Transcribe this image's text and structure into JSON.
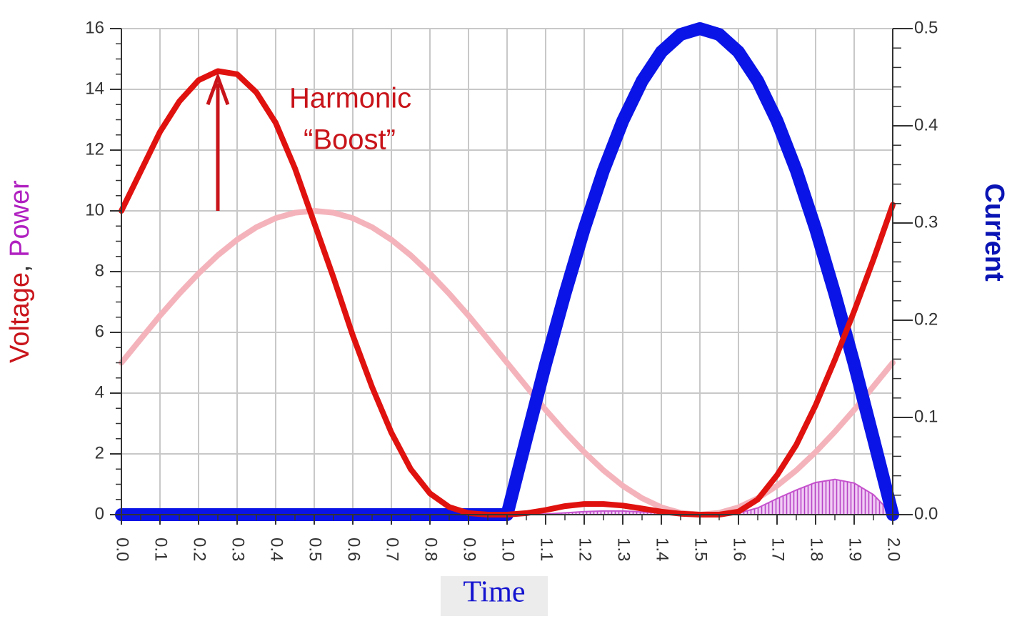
{
  "chart_data": {
    "type": "line",
    "y_label": [
      "Voltage",
      ", ",
      "Power"
    ],
    "y_label_colors": [
      "#c8141a",
      "#333333",
      "#b020c0"
    ],
    "y2_label": "Current",
    "y2_label_color": "#0a14b4",
    "x_label": "Time",
    "x_label_color": "#1414d0",
    "annotation": [
      "Harmonic",
      "“Boost”"
    ],
    "annotation_color": "#c8141a",
    "x": [
      0,
      0.05,
      0.1,
      0.15,
      0.2,
      0.25,
      0.3,
      0.35,
      0.4,
      0.45,
      0.5,
      0.55,
      0.6,
      0.65,
      0.7,
      0.75,
      0.8,
      0.85,
      0.9,
      0.95,
      1,
      1.05,
      1.1,
      1.15,
      1.2,
      1.25,
      1.3,
      1.35,
      1.4,
      1.45,
      1.5,
      1.55,
      1.6,
      1.65,
      1.7,
      1.75,
      1.8,
      1.85,
      1.9,
      1.95,
      2
    ],
    "series": [
      {
        "color": "#f4b3bb",
        "values": [
          5,
          5.78,
          6.55,
          7.27,
          7.94,
          8.54,
          9.05,
          9.46,
          9.76,
          9.94,
          10,
          9.94,
          9.76,
          9.46,
          9.05,
          8.54,
          7.94,
          7.27,
          6.55,
          5.78,
          5,
          4.22,
          3.45,
          2.73,
          2.06,
          1.46,
          0.95,
          0.54,
          0.24,
          0.06,
          0,
          0.06,
          0.24,
          0.54,
          0.95,
          1.46,
          2.06,
          2.73,
          3.45,
          4.22,
          5
        ]
      },
      {
        "type": "area",
        "color": "#c040c8",
        "values": [
          0,
          0,
          0,
          0,
          0,
          0,
          0,
          0,
          0,
          0,
          0,
          0,
          0,
          0,
          0,
          0,
          0,
          0,
          0,
          0,
          0,
          0.004,
          0.02,
          0.06,
          0.1,
          0.12,
          0.12,
          0.09,
          0.05,
          0.01,
          0,
          0,
          0.05,
          0.22,
          0.53,
          0.81,
          1.06,
          1.16,
          1.04,
          0.66,
          0
        ]
      },
      {
        "axis": "y2",
        "color": "#0a14e6",
        "values": [
          0,
          0,
          0,
          0,
          0,
          0,
          0,
          0,
          0,
          0,
          0,
          0,
          0,
          0,
          0,
          0,
          0,
          0,
          0,
          0,
          0,
          0.078,
          0.155,
          0.227,
          0.294,
          0.354,
          0.405,
          0.446,
          0.476,
          0.494,
          0.5,
          0.494,
          0.476,
          0.446,
          0.405,
          0.354,
          0.294,
          0.227,
          0.155,
          0.078,
          0
        ]
      },
      {
        "color": "#e0120f",
        "values": [
          10,
          11.3,
          12.6,
          13.6,
          14.3,
          14.6,
          14.5,
          13.9,
          12.9,
          11.4,
          9.6,
          7.8,
          5.9,
          4.2,
          2.7,
          1.5,
          0.7,
          0.25,
          0.05,
          0,
          0,
          0.05,
          0.15,
          0.28,
          0.35,
          0.35,
          0.3,
          0.2,
          0.1,
          0.03,
          0,
          0,
          0.1,
          0.5,
          1.3,
          2.3,
          3.6,
          5.1,
          6.7,
          8.4,
          10.2
        ]
      }
    ],
    "xlim": [
      0,
      2
    ],
    "ylim": [
      0,
      16
    ],
    "y2lim": [
      0,
      0.5
    ],
    "xticks": [
      {
        "value": 0,
        "label": "0.0"
      },
      0.1,
      0.2,
      0.3,
      0.4,
      0.5,
      0.6,
      0.7,
      0.8,
      0.9,
      {
        "value": 1,
        "label": "1.0"
      },
      1.1,
      1.2,
      1.3,
      1.4,
      1.5,
      1.6,
      1.7,
      1.8,
      1.9,
      {
        "value": 2,
        "label": "2.0"
      }
    ],
    "yticks": [
      0,
      2,
      4,
      6,
      8,
      10,
      12,
      14,
      16
    ],
    "y2ticks": [
      {
        "value": 0,
        "label": "0.0"
      },
      0.1,
      0.2,
      0.3,
      0.4,
      0.5
    ],
    "grid": true
  }
}
